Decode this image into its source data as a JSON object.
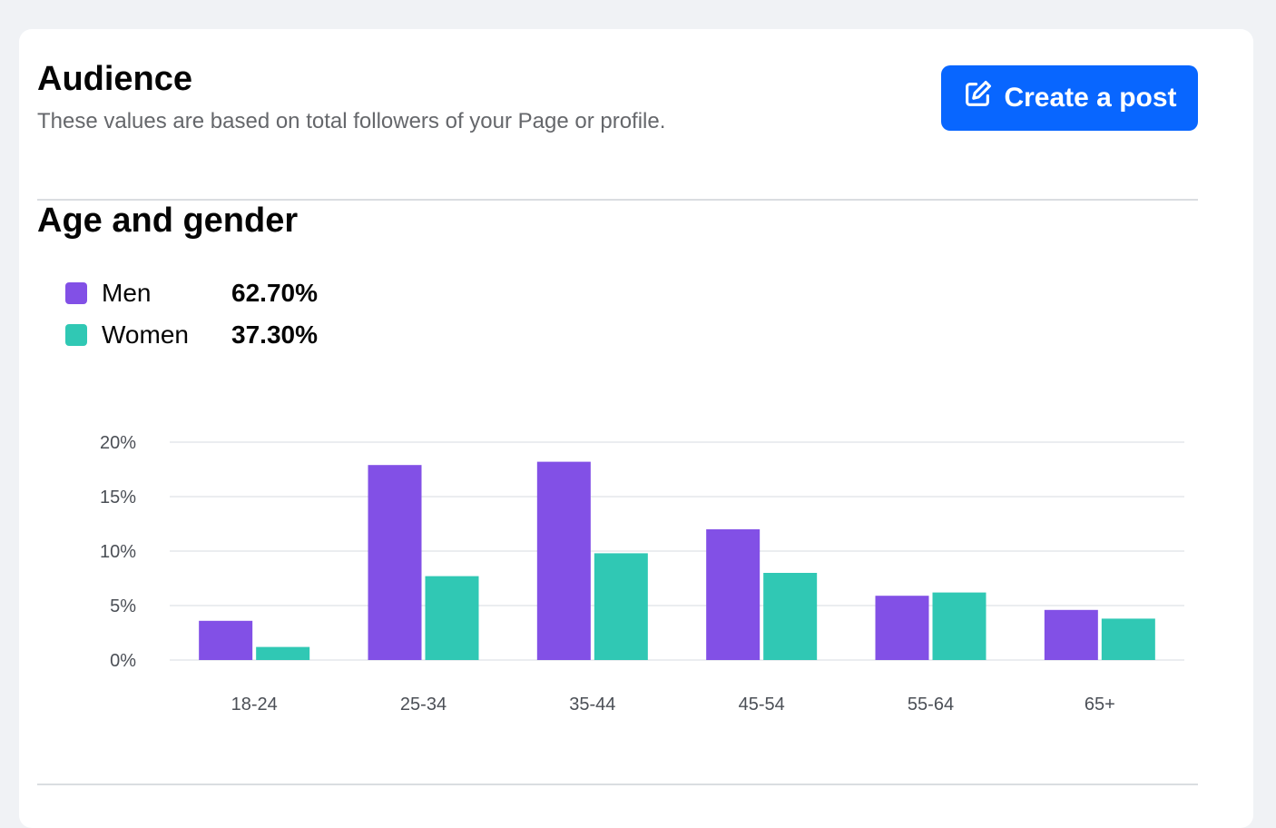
{
  "header": {
    "title": "Audience",
    "subtitle": "These values are based on total followers of your Page or profile.",
    "create_post_label": "Create a post",
    "create_post_icon": "edit-square-icon"
  },
  "section": {
    "title": "Age and gender"
  },
  "legend": [
    {
      "label": "Men",
      "value": "62.70%",
      "color": "#8250e6"
    },
    {
      "label": "Women",
      "value": "37.30%",
      "color": "#30c8b4"
    }
  ],
  "chart_data": {
    "type": "bar",
    "categories": [
      "18-24",
      "25-34",
      "35-44",
      "45-54",
      "55-64",
      "65+"
    ],
    "series": [
      {
        "name": "Men",
        "color": "#8250e6",
        "values": [
          3.6,
          17.9,
          18.2,
          12.0,
          5.9,
          4.6
        ]
      },
      {
        "name": "Women",
        "color": "#30c8b4",
        "values": [
          1.2,
          7.7,
          9.8,
          8.0,
          6.2,
          3.8
        ]
      }
    ],
    "ylim": [
      0,
      20
    ],
    "yticks": [
      "0%",
      "5%",
      "10%",
      "15%",
      "20%"
    ],
    "ytick_values": [
      0,
      5,
      10,
      15,
      20
    ],
    "grid": true,
    "legend_placement": "top-left"
  }
}
